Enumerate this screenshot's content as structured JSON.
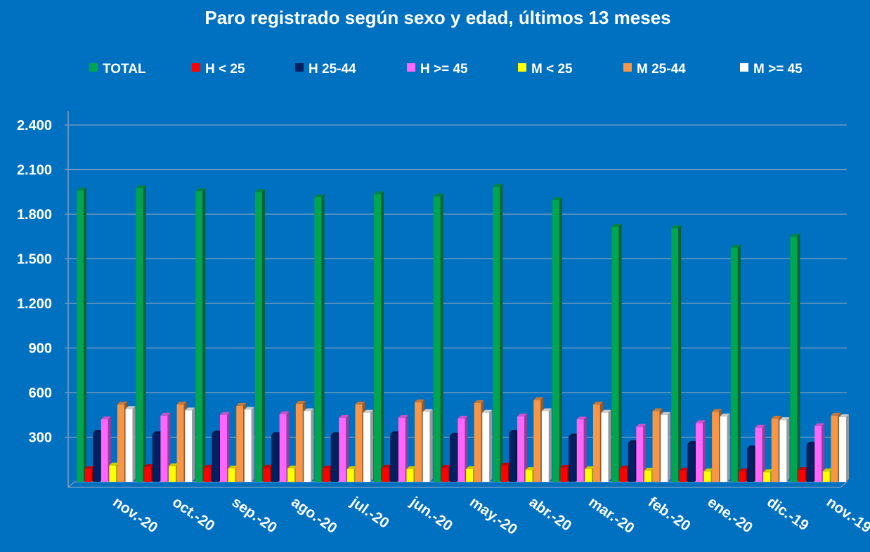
{
  "chart_data": {
    "type": "bar",
    "title": "Paro registrado según sexo y edad, últimos 13 meses",
    "xlabel": "",
    "ylabel": "",
    "ylim": [
      0,
      2400
    ],
    "yticks": [
      "",
      "300",
      "600",
      "900",
      "1.200",
      "1.500",
      "1.800",
      "2.100",
      "2.400"
    ],
    "grid": true,
    "legend_position": "top",
    "categories": [
      "nov.-20",
      "oct.-20",
      "sep.-20",
      "ago.-20",
      "jul.-20",
      "jun.-20",
      "may.-20",
      "abr.-20",
      "mar.-20",
      "feb.-20",
      "ene.-20",
      "dic.-19",
      "nov.-19"
    ],
    "series": [
      {
        "name": "TOTAL",
        "color": "#00a550",
        "values": [
          1960,
          1975,
          1955,
          1950,
          1915,
          1935,
          1920,
          1985,
          1895,
          1715,
          1705,
          1575,
          1650
        ]
      },
      {
        "name": "H < 25",
        "color": "#ff0000",
        "values": [
          85,
          100,
          95,
          95,
          90,
          95,
          95,
          110,
          95,
          90,
          75,
          70,
          80
        ]
      },
      {
        "name": "H 25-44",
        "color": "#002060",
        "values": [
          330,
          320,
          325,
          315,
          315,
          320,
          310,
          330,
          305,
          260,
          255,
          225,
          250
        ]
      },
      {
        "name": "H >= 45",
        "color": "#ff66ff",
        "values": [
          420,
          445,
          450,
          455,
          430,
          430,
          425,
          440,
          420,
          370,
          395,
          365,
          375
        ]
      },
      {
        "name": "M < 25",
        "color": "#ffff00",
        "values": [
          110,
          105,
          90,
          90,
          85,
          85,
          85,
          80,
          85,
          75,
          70,
          65,
          70
        ]
      },
      {
        "name": "M 25-44",
        "color": "#f79646",
        "values": [
          520,
          520,
          510,
          525,
          520,
          535,
          530,
          550,
          520,
          475,
          470,
          425,
          445
        ]
      },
      {
        "name": "M >= 45",
        "color": "#ffffff",
        "values": [
          490,
          480,
          485,
          475,
          465,
          470,
          465,
          475,
          465,
          450,
          440,
          415,
          435
        ]
      }
    ]
  }
}
